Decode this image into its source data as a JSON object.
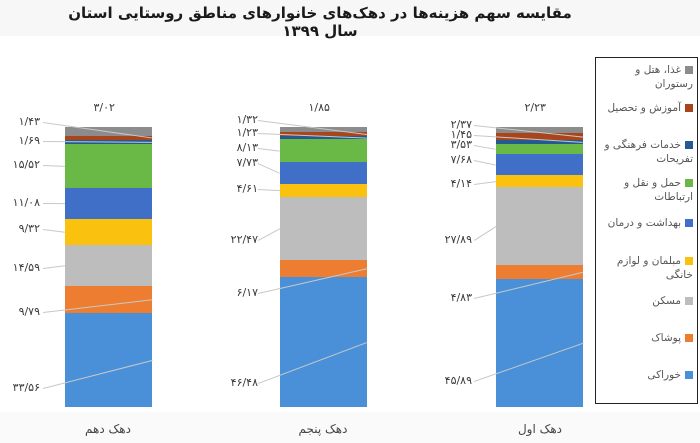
{
  "title": "مقایسه سهم هزینه‌ها در دهک‌های خانوارهای مناطق روستایی استان سال ۱۳۹۹",
  "chart_data": {
    "type": "bar",
    "stacked": true,
    "title": "مقایسه سهم هزینه‌ها در دهک‌های خانوارهای مناطق روستایی استان سال ۱۳۹۹",
    "xlabel": "",
    "ylabel": "",
    "ylim": [
      0,
      100
    ],
    "grid": false,
    "legend_position": "right",
    "categories": [
      "دهک دهم",
      "دهک پنجم",
      "دهک اول"
    ],
    "series": [
      {
        "name": "خوراکی",
        "color": "#4a90d9",
        "values": [
          33.56,
          46.48,
          45.89
        ],
        "labels": [
          "۳۳/۵۶",
          "۴۶/۴۸",
          "۴۵/۸۹"
        ]
      },
      {
        "name": "پوشاک",
        "color": "#ed7d31",
        "values": [
          9.79,
          6.17,
          4.83
        ],
        "labels": [
          "۹/۷۹",
          "۶/۱۷",
          "۴/۸۳"
        ]
      },
      {
        "name": "مسکن",
        "color": "#bdbdbd",
        "values": [
          14.59,
          22.47,
          27.89
        ],
        "labels": [
          "۱۴/۵۹",
          "۲۲/۴۷",
          "۲۷/۸۹"
        ]
      },
      {
        "name": "مبلمان و لوازم خانگی",
        "color": "#fbc10f",
        "values": [
          9.32,
          4.61,
          4.14
        ],
        "labels": [
          "۹/۳۲",
          "۴/۶۱",
          "۴/۱۴"
        ]
      },
      {
        "name": "بهداشت و درمان",
        "color": "#3f6fc6",
        "values": [
          11.08,
          7.73,
          7.68
        ],
        "labels": [
          "۱۱/۰۸",
          "۷/۷۳",
          "۷/۶۸"
        ]
      },
      {
        "name": "حمل و نقل و ارتباطات",
        "color": "#6ab845",
        "values": [
          15.52,
          8.13,
          3.53
        ],
        "labels": [
          "۱۵/۵۲",
          "۸/۱۳",
          "۳/۵۳"
        ]
      },
      {
        "name": "خدمات فرهنگی و تفریحات",
        "color": "#245a8f",
        "values": [
          1.69,
          1.23,
          1.45
        ],
        "labels": [
          "۱/۶۹",
          "۱/۲۳",
          "۱/۴۵"
        ]
      },
      {
        "name": "آموزش و تحصیل",
        "color": "#a9451c",
        "values": [
          1.43,
          1.32,
          2.37
        ],
        "labels": [
          "۱/۴۳",
          "۱/۳۲",
          "۲/۳۷"
        ]
      },
      {
        "name": "غذا، هتل و رستوران",
        "color": "#8c8c8c",
        "values": [
          3.02,
          1.85,
          2.23
        ],
        "labels": [
          "۳/۰۲",
          "۱/۸۵",
          "۲/۲۳"
        ]
      }
    ]
  },
  "x_labels": [
    "دهک دهم",
    "دهک پنجم",
    "دهک اول"
  ],
  "legend": [
    {
      "label": "غذا، هتل و رستوران",
      "color": "#8c8c8c"
    },
    {
      "label": "آموزش و تحصیل",
      "color": "#a9451c"
    },
    {
      "label": "خدمات فرهنگی و تفریحات",
      "color": "#245a8f"
    },
    {
      "label": "حمل و نقل و ارتباطات",
      "color": "#6ab845"
    },
    {
      "label": "بهداشت و درمان",
      "color": "#3f6fc6"
    },
    {
      "label": "مبلمان و لوازم خانگی",
      "color": "#fbc10f"
    },
    {
      "label": "مسکن",
      "color": "#bdbdbd"
    },
    {
      "label": "پوشاک",
      "color": "#ed7d31"
    },
    {
      "label": "خوراکی",
      "color": "#4a90d9"
    }
  ]
}
